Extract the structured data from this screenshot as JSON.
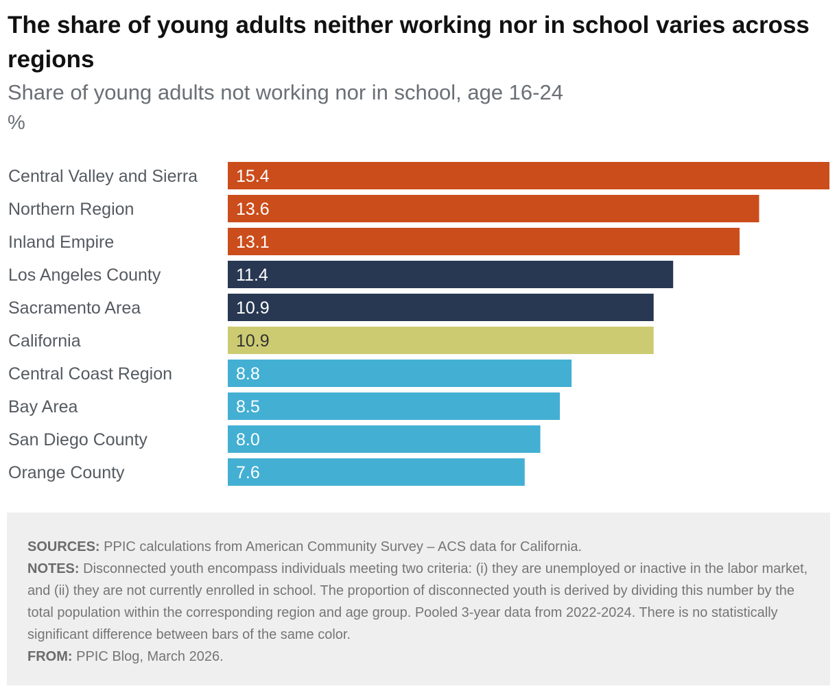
{
  "title": "The share of young adults neither working nor in school varies across regions",
  "subtitle": "Share of young adults not working nor in school, age 16-24",
  "unit_label": "%",
  "colors": {
    "orange": "#cb4d1c",
    "navy": "#283853",
    "olive": "#cdcb72",
    "blue": "#43afd3",
    "category_text": "#555a60"
  },
  "chart_data": {
    "type": "bar",
    "orientation": "horizontal",
    "title": "The share of young adults neither working nor in school varies across regions",
    "ylabel": "%",
    "xlim": [
      0,
      15.4
    ],
    "categories": [
      "Central Valley and Sierra",
      "Northern Region",
      "Inland Empire",
      "Los Angeles County",
      "Sacramento Area",
      "California",
      "Central Coast Region",
      "Bay Area",
      "San Diego County",
      "Orange County"
    ],
    "values": [
      15.4,
      13.6,
      13.1,
      11.4,
      10.9,
      10.9,
      8.8,
      8.5,
      8.0,
      7.6
    ],
    "labels": [
      "15.4",
      "13.6",
      "13.1",
      "11.4",
      "10.9",
      "10.9",
      "8.8",
      "8.5",
      "8.0",
      "7.6"
    ],
    "bar_colors": [
      "#cb4d1c",
      "#cb4d1c",
      "#cb4d1c",
      "#283853",
      "#283853",
      "#cdcb72",
      "#43afd3",
      "#43afd3",
      "#43afd3",
      "#43afd3"
    ],
    "label_colors": [
      "#ffffff",
      "#ffffff",
      "#ffffff",
      "#ffffff",
      "#ffffff",
      "#333333",
      "#ffffff",
      "#ffffff",
      "#ffffff",
      "#ffffff"
    ]
  },
  "footer": {
    "sources_label": "SOURCES:",
    "sources_text": "PPIC calculations from American Community Survey – ACS data for California.",
    "notes_label": "NOTES:",
    "notes_text": "Disconnected youth encompass individuals meeting two criteria: (i) they are unemployed or inactive in the labor market, and (ii) they are not currently enrolled in school. The proportion of disconnected youth is derived by dividing this number by the total population within the corresponding region and age group. Pooled 3-year data from 2022-2024. There is no statistically significant difference between bars of the same color.",
    "from_label": "FROM:",
    "from_text": "PPIC Blog, March 2026."
  }
}
